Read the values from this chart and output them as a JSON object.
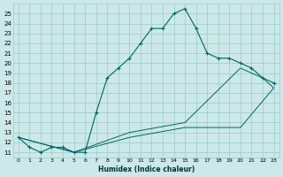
{
  "xlabel": "Humidex (Indice chaleur)",
  "background_color": "#cce8e8",
  "grid_color": "#99cccc",
  "line_color": "#006666",
  "xlim": [
    -0.5,
    23.5
  ],
  "ylim": [
    10.5,
    26.0
  ],
  "yticks": [
    11,
    12,
    13,
    14,
    15,
    16,
    17,
    18,
    19,
    20,
    21,
    22,
    23,
    24,
    25
  ],
  "xticks": [
    0,
    1,
    2,
    3,
    4,
    5,
    6,
    7,
    8,
    9,
    10,
    11,
    12,
    13,
    14,
    15,
    16,
    17,
    18,
    19,
    20,
    21,
    22,
    23
  ],
  "xtick_labels": [
    "0",
    "1",
    "2",
    "3",
    "4",
    "5",
    "6",
    "7",
    "8",
    "9",
    "10",
    "11",
    "12",
    "13",
    "14",
    "15",
    "16",
    "17",
    "18",
    "19",
    "20",
    "21",
    "22",
    "23"
  ],
  "lines": [
    {
      "x": [
        0,
        1,
        2,
        3,
        4,
        5,
        6,
        7,
        8,
        9,
        10,
        11,
        12,
        13,
        14,
        15,
        16,
        17,
        18,
        19,
        20,
        21,
        22,
        23
      ],
      "y": [
        12.5,
        11.5,
        11.0,
        11.5,
        11.5,
        11.0,
        11.0,
        15.0,
        18.5,
        19.5,
        20.5,
        22.0,
        23.5,
        23.5,
        25.0,
        25.5,
        23.5,
        21.0,
        20.5,
        20.5,
        20.0,
        19.5,
        18.5,
        18.0
      ],
      "has_markers": true
    },
    {
      "x": [
        0,
        5,
        10,
        15,
        20,
        23
      ],
      "y": [
        12.5,
        11.0,
        12.5,
        13.5,
        13.5,
        17.5
      ],
      "has_markers": false
    },
    {
      "x": [
        0,
        5,
        10,
        15,
        20,
        21,
        22,
        23
      ],
      "y": [
        12.5,
        11.0,
        13.0,
        14.0,
        19.5,
        19.0,
        18.5,
        17.5
      ],
      "has_markers": false
    }
  ]
}
